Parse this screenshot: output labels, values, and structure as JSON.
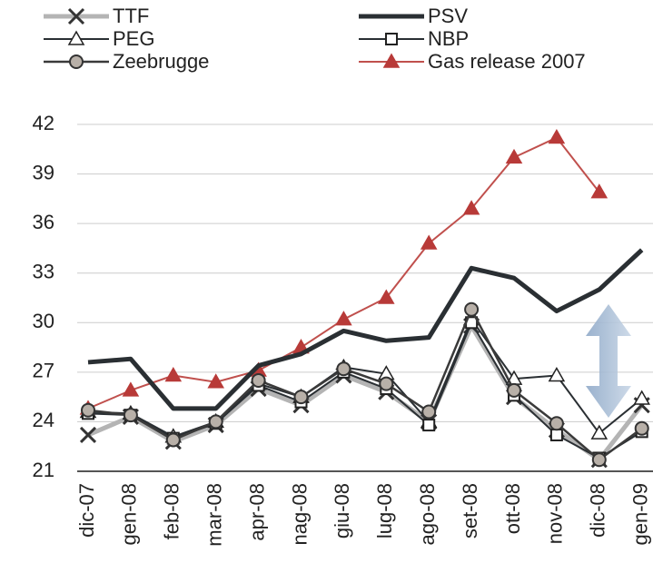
{
  "chart_data": {
    "type": "line",
    "categories": [
      "dic-07",
      "gen-08",
      "feb-08",
      "mar-08",
      "apr-08",
      "nag-08",
      "giu-08",
      "lug-08",
      "ago-08",
      "set-08",
      "ott-08",
      "nov-08",
      "dic-08",
      "gen-09"
    ],
    "series": [
      {
        "name": "TTF",
        "color": "#b4b4b4",
        "marker": "x",
        "line_width": 5,
        "values": [
          23.2,
          24.3,
          22.8,
          23.8,
          26.0,
          25.0,
          26.8,
          25.8,
          24.0,
          29.8,
          25.5,
          23.5,
          21.7,
          25.0
        ]
      },
      {
        "name": "PEG",
        "color": "#2a2f33",
        "marker": "triangle",
        "line_width": 2,
        "values": [
          24.6,
          24.5,
          23.1,
          24.0,
          26.3,
          25.5,
          27.3,
          26.9,
          24.0,
          30.2,
          26.6,
          26.8,
          23.3,
          25.4
        ]
      },
      {
        "name": "Zeebrugge",
        "color": "#3a3a3a",
        "marker": "circle",
        "line_width": 2.5,
        "values": [
          24.7,
          24.4,
          22.9,
          24.0,
          26.5,
          25.5,
          27.2,
          26.3,
          24.6,
          30.8,
          25.9,
          23.9,
          21.7,
          23.6
        ]
      },
      {
        "name": "PSV",
        "color": "#2a2f33",
        "marker": "none",
        "line_width": 5,
        "values": [
          27.6,
          27.8,
          24.8,
          24.8,
          27.4,
          28.1,
          29.5,
          28.9,
          29.1,
          33.3,
          32.7,
          30.7,
          32.0,
          34.4
        ]
      },
      {
        "name": "NBP",
        "color": "#2a2f33",
        "marker": "square",
        "line_width": 2,
        "values": [
          24.5,
          24.4,
          23.0,
          23.9,
          26.2,
          25.2,
          27.0,
          26.0,
          23.8,
          30.0,
          25.6,
          23.2,
          21.8,
          23.4
        ]
      },
      {
        "name": "Gas release 2007",
        "color": "#c0504d",
        "marker": "triangle",
        "line_width": 2,
        "values": [
          24.8,
          25.9,
          26.8,
          26.4,
          27.1,
          28.5,
          30.2,
          31.5,
          34.8,
          36.9,
          40.0,
          41.2,
          37.9,
          null
        ]
      }
    ],
    "ylim": [
      21,
      42
    ],
    "yticks": [
      21,
      24,
      27,
      30,
      33,
      36,
      39,
      42
    ],
    "grid": true
  }
}
